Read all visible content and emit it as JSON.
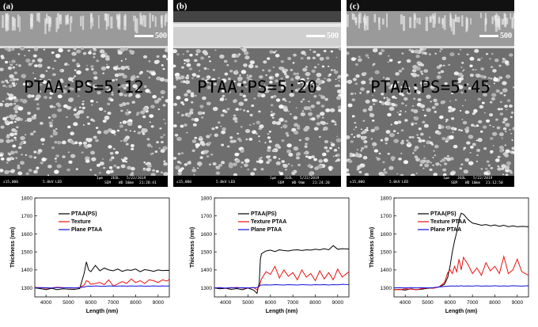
{
  "sem_panels": [
    {
      "label": "(a)",
      "ratio_text": "PTAA:PS=5:12",
      "scale_text": "500",
      "info": {
        "mag": "x15,000",
        "kv": "5.0kV",
        "det": "LED",
        "bar": "1μm",
        "org": "JEOL",
        "date": "5/22/2019",
        "mode": "SEM",
        "wd": "WD 10mm",
        "time": "21:28:41"
      }
    },
    {
      "label": "(b)",
      "ratio_text": "PTAA:PS=5:20",
      "scale_text": "500",
      "info": {
        "mag": "x15,000",
        "kv": "5.0kV",
        "det": "LED",
        "bar": "1μm",
        "org": "JEOL",
        "date": "5/22/2019",
        "mode": "SEM",
        "wd": "WD 9mm",
        "time": "21:24:20"
      }
    },
    {
      "label": "(c)",
      "ratio_text": "PTAA:PS=5:45",
      "scale_text": "500",
      "info": {
        "mag": "x15,000",
        "kv": "5.0kV",
        "det": "LED",
        "bar": "1μm",
        "org": "JEOL",
        "date": "5/22/2019",
        "mode": "SEM",
        "wd": "WD 10mm",
        "time": "21:12:50"
      }
    }
  ],
  "colors": {
    "ptaa_ps": "#000000",
    "texture": "#ee1111",
    "plane": "#1111dd"
  },
  "chart_data": [
    {
      "type": "line",
      "xlabel": "Length (nm)",
      "ylabel": "Thickness (nm)",
      "xlim": [
        3500,
        9500
      ],
      "ylim": [
        1250,
        1800
      ],
      "xticks": [
        4000,
        5000,
        6000,
        7000,
        8000,
        9000
      ],
      "yticks": [
        1300,
        1400,
        1500,
        1600,
        1700,
        1800
      ],
      "legend_position": "top-left",
      "x": [
        3500,
        3750,
        4000,
        4250,
        4500,
        4750,
        5000,
        5250,
        5500,
        5700,
        5800,
        5900,
        6000,
        6200,
        6400,
        6600,
        6800,
        7000,
        7200,
        7400,
        7600,
        7800,
        8000,
        8200,
        8400,
        8600,
        8800,
        9000,
        9200,
        9400,
        9500
      ],
      "series": [
        {
          "name": "PTAA(PS)",
          "color_key": "ptaa_ps",
          "values": [
            1300,
            1296,
            1290,
            1298,
            1290,
            1295,
            1293,
            1292,
            1296,
            1380,
            1445,
            1400,
            1390,
            1425,
            1395,
            1410,
            1400,
            1395,
            1405,
            1392,
            1400,
            1398,
            1405,
            1390,
            1402,
            1398,
            1392,
            1400,
            1396,
            1398,
            1397
          ]
        },
        {
          "name": "Texture",
          "color_key": "texture",
          "values": [
            1303,
            1302,
            1298,
            1300,
            1304,
            1302,
            1300,
            1299,
            1303,
            1315,
            1340,
            1335,
            1320,
            1325,
            1330,
            1318,
            1345,
            1310,
            1322,
            1335,
            1325,
            1350,
            1330,
            1340,
            1325,
            1345,
            1340,
            1330,
            1345,
            1338,
            1348
          ]
        },
        {
          "name": "Plane PTAA",
          "color_key": "plane",
          "values": [
            1300,
            1302,
            1301,
            1299,
            1302,
            1300,
            1301,
            1300,
            1302,
            1305,
            1308,
            1310,
            1309,
            1311,
            1310,
            1309,
            1311,
            1310,
            1310,
            1311,
            1310,
            1311,
            1310,
            1311,
            1310,
            1310,
            1311,
            1310,
            1311,
            1310,
            1311
          ]
        }
      ]
    },
    {
      "type": "line",
      "xlabel": "Length (nm)",
      "ylabel": "Thickness (nm)",
      "xlim": [
        3500,
        9500
      ],
      "ylim": [
        1250,
        1800
      ],
      "xticks": [
        4000,
        5000,
        6000,
        7000,
        8000,
        9000
      ],
      "yticks": [
        1300,
        1400,
        1500,
        1600,
        1700,
        1800
      ],
      "legend_position": "top-left",
      "x": [
        3500,
        3750,
        4000,
        4250,
        4500,
        4750,
        5000,
        5250,
        5400,
        5500,
        5550,
        5600,
        5800,
        6000,
        6200,
        6400,
        6600,
        6800,
        7000,
        7200,
        7400,
        7600,
        7800,
        8000,
        8200,
        8400,
        8600,
        8800,
        9000,
        9200,
        9500
      ],
      "series": [
        {
          "name": "PTAA(PS)",
          "color_key": "ptaa_ps",
          "values": [
            1300,
            1295,
            1298,
            1292,
            1296,
            1290,
            1300,
            1288,
            1270,
            1330,
            1460,
            1490,
            1505,
            1510,
            1502,
            1512,
            1508,
            1505,
            1510,
            1512,
            1508,
            1512,
            1510,
            1515,
            1512,
            1518,
            1512,
            1535,
            1515,
            1518,
            1516
          ]
        },
        {
          "name": "Texture PTAA",
          "color_key": "texture",
          "values": [
            1300,
            1302,
            1298,
            1300,
            1303,
            1299,
            1300,
            1302,
            1290,
            1310,
            1330,
            1350,
            1390,
            1375,
            1420,
            1355,
            1400,
            1365,
            1385,
            1345,
            1400,
            1360,
            1380,
            1340,
            1395,
            1350,
            1385,
            1345,
            1405,
            1360,
            1390
          ]
        },
        {
          "name": "Plane PTAA",
          "color_key": "plane",
          "values": [
            1300,
            1301,
            1299,
            1302,
            1300,
            1301,
            1300,
            1302,
            1302,
            1310,
            1315,
            1316,
            1317,
            1316,
            1318,
            1317,
            1316,
            1318,
            1317,
            1316,
            1318,
            1317,
            1316,
            1318,
            1317,
            1318,
            1316,
            1318,
            1317,
            1320,
            1318
          ]
        }
      ]
    },
    {
      "type": "line",
      "xlabel": "Length (nm)",
      "ylabel": "Thickness (nm)",
      "xlim": [
        3500,
        9500
      ],
      "ylim": [
        1250,
        1800
      ],
      "xticks": [
        4000,
        5000,
        6000,
        7000,
        8000,
        9000
      ],
      "yticks": [
        1300,
        1400,
        1500,
        1600,
        1700,
        1800
      ],
      "legend_position": "top-left",
      "x": [
        3500,
        3750,
        4000,
        4250,
        4500,
        4750,
        5000,
        5250,
        5500,
        5750,
        5900,
        6000,
        6100,
        6200,
        6300,
        6400,
        6500,
        6600,
        6800,
        7000,
        7200,
        7400,
        7600,
        7800,
        8000,
        8200,
        8400,
        8600,
        8800,
        9000,
        9200,
        9500
      ],
      "series": [
        {
          "name": "PTAA(PS)",
          "color_key": "ptaa_ps",
          "values": [
            1290,
            1292,
            1288,
            1295,
            1290,
            1293,
            1298,
            1300,
            1305,
            1320,
            1360,
            1420,
            1500,
            1560,
            1610,
            1680,
            1715,
            1710,
            1680,
            1660,
            1655,
            1648,
            1652,
            1645,
            1650,
            1642,
            1648,
            1640,
            1645,
            1640,
            1642,
            1640
          ]
        },
        {
          "name": "Texture PTAA",
          "color_key": "texture",
          "values": [
            1292,
            1290,
            1295,
            1293,
            1290,
            1296,
            1300,
            1298,
            1305,
            1330,
            1385,
            1400,
            1380,
            1420,
            1390,
            1460,
            1400,
            1470,
            1430,
            1380,
            1410,
            1370,
            1440,
            1395,
            1420,
            1380,
            1475,
            1380,
            1400,
            1460,
            1390,
            1370
          ]
        },
        {
          "name": "Plane PTAA",
          "color_key": "plane",
          "values": [
            1300,
            1301,
            1300,
            1302,
            1300,
            1301,
            1300,
            1302,
            1305,
            1308,
            1310,
            1310,
            1311,
            1310,
            1311,
            1310,
            1312,
            1310,
            1311,
            1310,
            1312,
            1310,
            1311,
            1310,
            1312,
            1310,
            1311,
            1310,
            1312,
            1311,
            1310,
            1312
          ]
        }
      ]
    }
  ]
}
